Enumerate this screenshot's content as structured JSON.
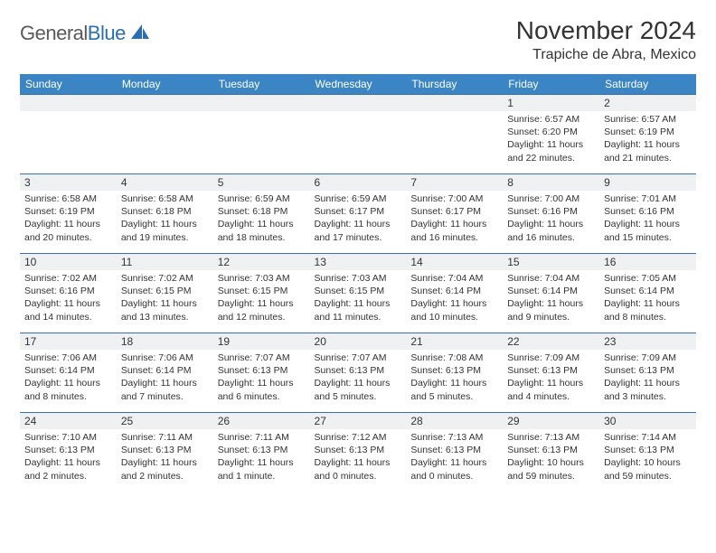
{
  "brand": {
    "name_gray": "General",
    "name_blue": "Blue"
  },
  "title": "November 2024",
  "location": "Trapiche de Abra, Mexico",
  "colors": {
    "header_bg": "#3b85c5",
    "header_fg": "#ffffff",
    "row_divider": "#3b6fa5",
    "daynum_bg": "#eef0f2",
    "text": "#333333",
    "logo_gray": "#5a5a5a",
    "logo_blue": "#2a6fb5"
  },
  "day_labels": [
    "Sunday",
    "Monday",
    "Tuesday",
    "Wednesday",
    "Thursday",
    "Friday",
    "Saturday"
  ],
  "weeks": [
    [
      null,
      null,
      null,
      null,
      null,
      {
        "n": "1",
        "sr": "6:57 AM",
        "ss": "6:20 PM",
        "dl": "11 hours and 22 minutes."
      },
      {
        "n": "2",
        "sr": "6:57 AM",
        "ss": "6:19 PM",
        "dl": "11 hours and 21 minutes."
      }
    ],
    [
      {
        "n": "3",
        "sr": "6:58 AM",
        "ss": "6:19 PM",
        "dl": "11 hours and 20 minutes."
      },
      {
        "n": "4",
        "sr": "6:58 AM",
        "ss": "6:18 PM",
        "dl": "11 hours and 19 minutes."
      },
      {
        "n": "5",
        "sr": "6:59 AM",
        "ss": "6:18 PM",
        "dl": "11 hours and 18 minutes."
      },
      {
        "n": "6",
        "sr": "6:59 AM",
        "ss": "6:17 PM",
        "dl": "11 hours and 17 minutes."
      },
      {
        "n": "7",
        "sr": "7:00 AM",
        "ss": "6:17 PM",
        "dl": "11 hours and 16 minutes."
      },
      {
        "n": "8",
        "sr": "7:00 AM",
        "ss": "6:16 PM",
        "dl": "11 hours and 16 minutes."
      },
      {
        "n": "9",
        "sr": "7:01 AM",
        "ss": "6:16 PM",
        "dl": "11 hours and 15 minutes."
      }
    ],
    [
      {
        "n": "10",
        "sr": "7:02 AM",
        "ss": "6:16 PM",
        "dl": "11 hours and 14 minutes."
      },
      {
        "n": "11",
        "sr": "7:02 AM",
        "ss": "6:15 PM",
        "dl": "11 hours and 13 minutes."
      },
      {
        "n": "12",
        "sr": "7:03 AM",
        "ss": "6:15 PM",
        "dl": "11 hours and 12 minutes."
      },
      {
        "n": "13",
        "sr": "7:03 AM",
        "ss": "6:15 PM",
        "dl": "11 hours and 11 minutes."
      },
      {
        "n": "14",
        "sr": "7:04 AM",
        "ss": "6:14 PM",
        "dl": "11 hours and 10 minutes."
      },
      {
        "n": "15",
        "sr": "7:04 AM",
        "ss": "6:14 PM",
        "dl": "11 hours and 9 minutes."
      },
      {
        "n": "16",
        "sr": "7:05 AM",
        "ss": "6:14 PM",
        "dl": "11 hours and 8 minutes."
      }
    ],
    [
      {
        "n": "17",
        "sr": "7:06 AM",
        "ss": "6:14 PM",
        "dl": "11 hours and 8 minutes."
      },
      {
        "n": "18",
        "sr": "7:06 AM",
        "ss": "6:14 PM",
        "dl": "11 hours and 7 minutes."
      },
      {
        "n": "19",
        "sr": "7:07 AM",
        "ss": "6:13 PM",
        "dl": "11 hours and 6 minutes."
      },
      {
        "n": "20",
        "sr": "7:07 AM",
        "ss": "6:13 PM",
        "dl": "11 hours and 5 minutes."
      },
      {
        "n": "21",
        "sr": "7:08 AM",
        "ss": "6:13 PM",
        "dl": "11 hours and 5 minutes."
      },
      {
        "n": "22",
        "sr": "7:09 AM",
        "ss": "6:13 PM",
        "dl": "11 hours and 4 minutes."
      },
      {
        "n": "23",
        "sr": "7:09 AM",
        "ss": "6:13 PM",
        "dl": "11 hours and 3 minutes."
      }
    ],
    [
      {
        "n": "24",
        "sr": "7:10 AM",
        "ss": "6:13 PM",
        "dl": "11 hours and 2 minutes."
      },
      {
        "n": "25",
        "sr": "7:11 AM",
        "ss": "6:13 PM",
        "dl": "11 hours and 2 minutes."
      },
      {
        "n": "26",
        "sr": "7:11 AM",
        "ss": "6:13 PM",
        "dl": "11 hours and 1 minute."
      },
      {
        "n": "27",
        "sr": "7:12 AM",
        "ss": "6:13 PM",
        "dl": "11 hours and 0 minutes."
      },
      {
        "n": "28",
        "sr": "7:13 AM",
        "ss": "6:13 PM",
        "dl": "11 hours and 0 minutes."
      },
      {
        "n": "29",
        "sr": "7:13 AM",
        "ss": "6:13 PM",
        "dl": "10 hours and 59 minutes."
      },
      {
        "n": "30",
        "sr": "7:14 AM",
        "ss": "6:13 PM",
        "dl": "10 hours and 59 minutes."
      }
    ]
  ],
  "labels": {
    "sunrise": "Sunrise:",
    "sunset": "Sunset:",
    "daylight": "Daylight:"
  }
}
